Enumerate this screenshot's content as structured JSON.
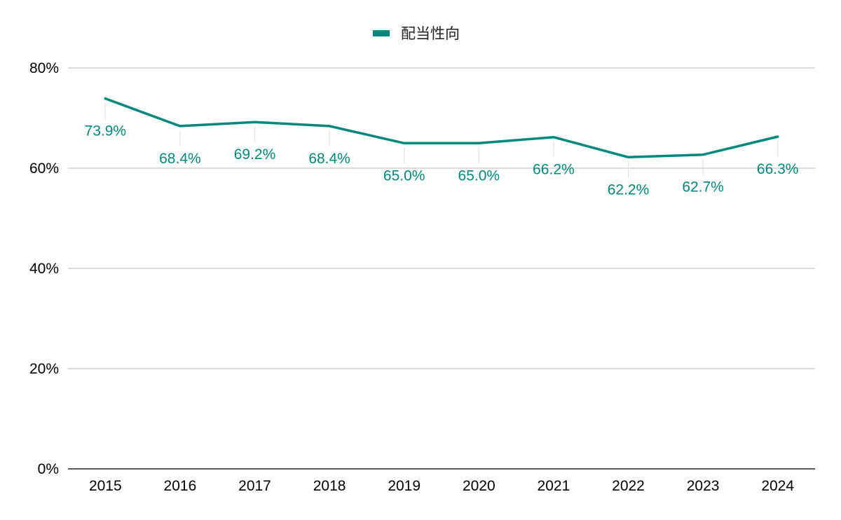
{
  "chart_data": {
    "type": "line",
    "categories": [
      "2015",
      "2016",
      "2017",
      "2018",
      "2019",
      "2020",
      "2021",
      "2022",
      "2023",
      "2024"
    ],
    "series": [
      {
        "name": "配当性向",
        "values": [
          73.9,
          68.4,
          69.2,
          68.4,
          65.0,
          65.0,
          66.2,
          62.2,
          62.7,
          66.3
        ],
        "labels": [
          "73.9%",
          "68.4%",
          "69.2%",
          "68.4%",
          "65.0%",
          "65.0%",
          "66.2%",
          "62.2%",
          "62.7%",
          "66.3%"
        ],
        "color": "#00897b"
      }
    ],
    "yticks": [
      0,
      20,
      40,
      60,
      80
    ],
    "ytick_labels": [
      "0%",
      "20%",
      "40%",
      "60%",
      "80%"
    ],
    "ylim": [
      0,
      80
    ],
    "grid": true,
    "legend_position": "top-center"
  }
}
